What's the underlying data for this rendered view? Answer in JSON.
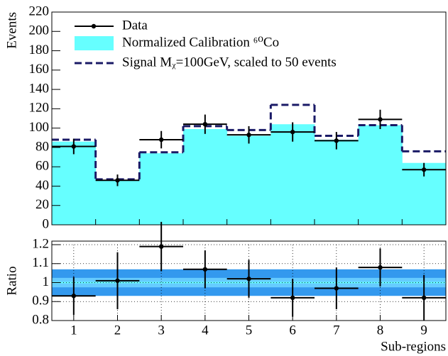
{
  "chart_data": [
    {
      "type": "step",
      "ylabel": "Events",
      "ylim": [
        0,
        220
      ],
      "yticks": [
        0,
        20,
        40,
        60,
        80,
        100,
        120,
        140,
        160,
        180,
        200,
        220
      ],
      "legend": "top-left",
      "series": [
        {
          "name": "Data",
          "color": "#000000",
          "values": [
            81,
            46,
            88,
            104,
            93,
            96,
            87,
            109,
            57
          ],
          "errors": [
            8,
            6,
            9,
            10,
            9,
            10,
            9,
            10,
            7
          ]
        },
        {
          "name": "Normalized Calibration ⁶⁰Co",
          "color": "#66ffff",
          "values": [
            86,
            46,
            74,
            99,
            92,
            104,
            88,
            103,
            64
          ]
        },
        {
          "name": "Signal Mᵪ=100GeV, scaled to 50 events",
          "color": "#1a1a66",
          "values": [
            88,
            47,
            75,
            102,
            98,
            124,
            92,
            103,
            76
          ]
        }
      ]
    },
    {
      "type": "ratio",
      "ylabel": "Ratio",
      "xlabel": "Sub-regions",
      "categories": [
        "1",
        "2",
        "3",
        "4",
        "5",
        "6",
        "7",
        "8",
        "9"
      ],
      "ylim": [
        0.8,
        1.2
      ],
      "yticks": [
        0.8,
        0.9,
        1,
        1.1,
        1.2
      ],
      "grid": true,
      "values": [
        0.93,
        1.01,
        1.19,
        1.07,
        1.02,
        0.92,
        0.97,
        1.08,
        0.92
      ],
      "errors": [
        0.1,
        0.15,
        0.13,
        0.1,
        0.1,
        0.1,
        0.11,
        0.1,
        0.12
      ],
      "reference": 1,
      "reference_color": "#66ffff",
      "bands": [
        {
          "half_width": 0.07,
          "color": "#3399ee"
        },
        {
          "half_width": 0.025,
          "color": "#66ccff"
        }
      ]
    }
  ]
}
